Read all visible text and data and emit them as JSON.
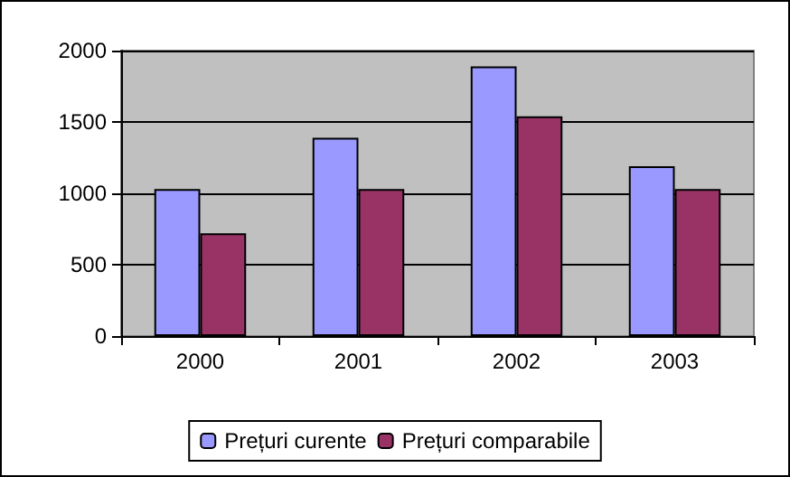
{
  "chart_data": {
    "type": "bar",
    "categories": [
      "2000",
      "2001",
      "2002",
      "2003"
    ],
    "series": [
      {
        "name": "Prețuri curente",
        "color": "#9999ff",
        "values": [
          1030,
          1390,
          1890,
          1190
        ]
      },
      {
        "name": "Prețuri comparabile",
        "color": "#993366",
        "values": [
          720,
          1030,
          1540,
          1030
        ]
      }
    ],
    "ylim": [
      0,
      2000
    ],
    "yticks": [
      0,
      500,
      1000,
      1500,
      2000
    ],
    "grid": "y",
    "legend": "bottom"
  }
}
